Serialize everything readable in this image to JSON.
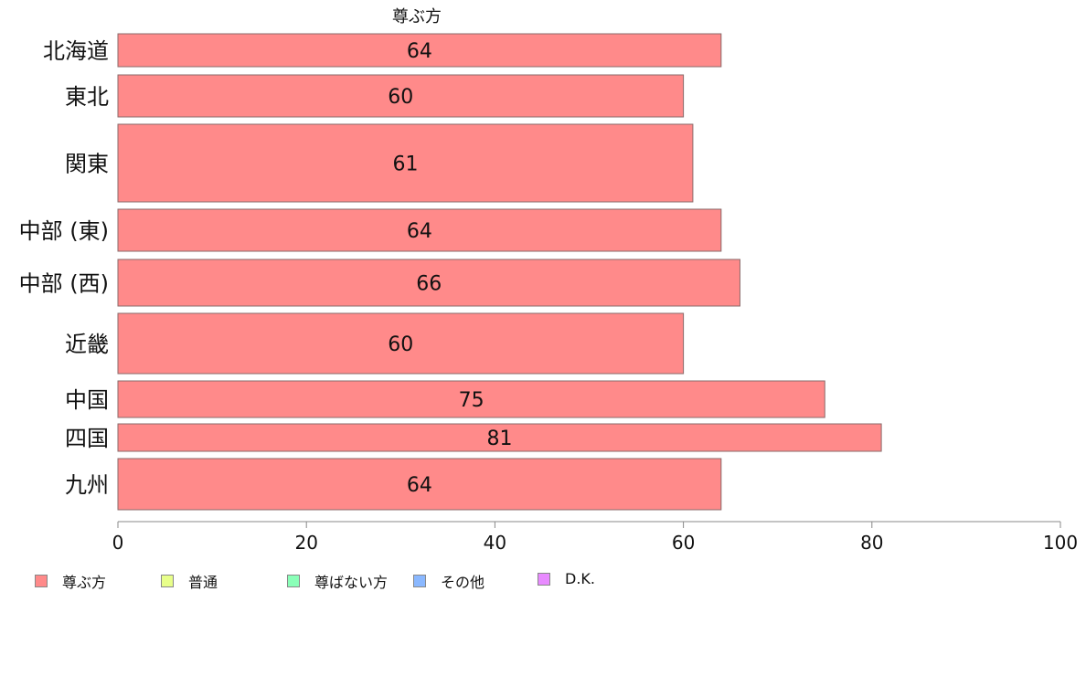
{
  "chart_data": {
    "type": "bar",
    "orientation": "horizontal",
    "title": "尊ぶ方",
    "categories": [
      "北海道",
      "東北",
      "関東",
      "中部 (東)",
      "中部 (西)",
      "近畿",
      "中国",
      "四国",
      "九州"
    ],
    "series": [
      {
        "name": "尊ぶ方",
        "values": [
          64,
          60,
          61,
          64,
          66,
          60,
          75,
          81,
          64
        ],
        "color": "#ff8a8a"
      }
    ],
    "data_labels": [
      "64",
      "60",
      "61",
      "64",
      "66",
      "60",
      "75",
      "81",
      "64"
    ],
    "xlim": [
      0,
      100
    ],
    "x_ticks": [
      0,
      20,
      40,
      60,
      80,
      100
    ],
    "x_tick_labels": [
      "0",
      "20",
      "40",
      "60",
      "80",
      "100"
    ],
    "grid": false,
    "legend_position": "bottom-left",
    "legend": [
      {
        "label": "尊ぶ方",
        "color": "#ff8a8a"
      },
      {
        "label": "普通",
        "color": "#e8ff8a"
      },
      {
        "label": "尊ばない方",
        "color": "#8affb8"
      },
      {
        "label": "その他",
        "color": "#8ab8ff"
      },
      {
        "label": "D.K.",
        "color": "#e88aff"
      }
    ]
  }
}
